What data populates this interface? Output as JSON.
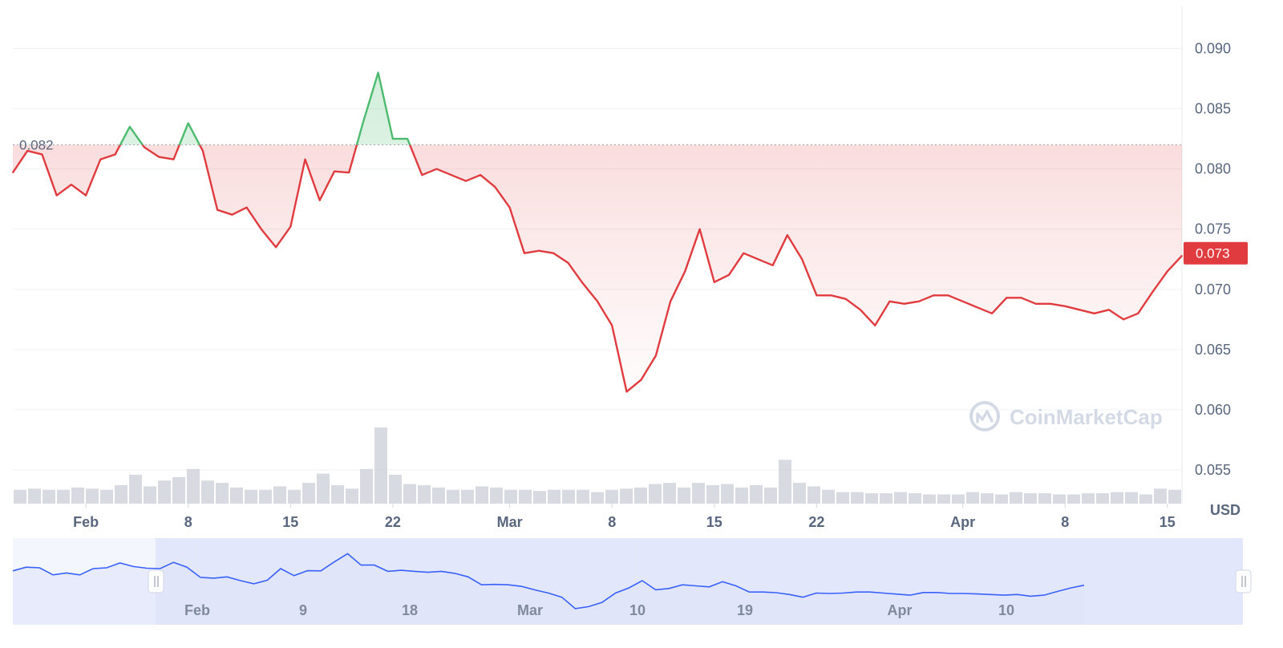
{
  "colors": {
    "down": "#e03b3f",
    "up": "#4cbb6e",
    "volume": "#c9ced6",
    "navigator_line": "#3861fb",
    "navigator_fill": "#dfe4fa",
    "axis_text": "#58667e"
  },
  "watermark": {
    "text": "CoinMarketCap",
    "icon": "coinmarketcap-logo-icon"
  },
  "chart_data": {
    "type": "line",
    "title": "",
    "unit": "USD",
    "reference_value": 0.082,
    "reference_label": "0.082",
    "current_value": 0.073,
    "current_label": "0.073",
    "y_ticks": [
      "0.090",
      "0.085",
      "0.080",
      "0.075",
      "0.070",
      "0.065",
      "0.060",
      "0.055"
    ],
    "ylim": [
      0.0522,
      0.0935
    ],
    "x_ticks": [
      {
        "label": "Feb",
        "date": "2024-02-01"
      },
      {
        "label": "8",
        "date": "2024-02-08"
      },
      {
        "label": "15",
        "date": "2024-02-15"
      },
      {
        "label": "22",
        "date": "2024-02-22"
      },
      {
        "label": "Mar",
        "date": "2024-03-01"
      },
      {
        "label": "8",
        "date": "2024-03-08"
      },
      {
        "label": "15",
        "date": "2024-03-15"
      },
      {
        "label": "22",
        "date": "2024-03-22"
      },
      {
        "label": "Apr",
        "date": "2024-04-01"
      },
      {
        "label": "8",
        "date": "2024-04-08"
      },
      {
        "label": "15",
        "date": "2024-04-15"
      }
    ],
    "xlim": [
      "2024-01-27",
      "2024-04-16"
    ],
    "grid": true,
    "series": [
      {
        "x": [
          "2024-01-27",
          "2024-01-28",
          "2024-01-29",
          "2024-01-30",
          "2024-01-31",
          "2024-02-01",
          "2024-02-02",
          "2024-02-03",
          "2024-02-04",
          "2024-02-05",
          "2024-02-06",
          "2024-02-07",
          "2024-02-08",
          "2024-02-09",
          "2024-02-10",
          "2024-02-11",
          "2024-02-12",
          "2024-02-13",
          "2024-02-14",
          "2024-02-15",
          "2024-02-16",
          "2024-02-17",
          "2024-02-18",
          "2024-02-19",
          "2024-02-20",
          "2024-02-21",
          "2024-02-22",
          "2024-02-23",
          "2024-02-24",
          "2024-02-25",
          "2024-02-26",
          "2024-02-27",
          "2024-02-28",
          "2024-02-29",
          "2024-03-01",
          "2024-03-02",
          "2024-03-03",
          "2024-03-04",
          "2024-03-05",
          "2024-03-06",
          "2024-03-07",
          "2024-03-08",
          "2024-03-09",
          "2024-03-10",
          "2024-03-11",
          "2024-03-12",
          "2024-03-13",
          "2024-03-14",
          "2024-03-15",
          "2024-03-16",
          "2024-03-17",
          "2024-03-18",
          "2024-03-19",
          "2024-03-20",
          "2024-03-21",
          "2024-03-22",
          "2024-03-23",
          "2024-03-24",
          "2024-03-25",
          "2024-03-26",
          "2024-03-27",
          "2024-03-28",
          "2024-03-29",
          "2024-03-30",
          "2024-03-31",
          "2024-04-01",
          "2024-04-02",
          "2024-04-03",
          "2024-04-04",
          "2024-04-05",
          "2024-04-06",
          "2024-04-07",
          "2024-04-08",
          "2024-04-09",
          "2024-04-10",
          "2024-04-11",
          "2024-04-12",
          "2024-04-13",
          "2024-04-14",
          "2024-04-15",
          "2024-04-16"
        ],
        "values": [
          0.0797,
          0.0815,
          0.0812,
          0.0778,
          0.0787,
          0.0778,
          0.0808,
          0.0812,
          0.0835,
          0.0818,
          0.081,
          0.0808,
          0.0838,
          0.0815,
          0.0766,
          0.0762,
          0.0768,
          0.075,
          0.0735,
          0.0752,
          0.0808,
          0.0774,
          0.0798,
          0.0797,
          0.084,
          0.088,
          0.0825,
          0.0825,
          0.0795,
          0.08,
          0.0795,
          0.079,
          0.0795,
          0.0785,
          0.0768,
          0.073,
          0.0732,
          0.073,
          0.0722,
          0.0705,
          0.069,
          0.067,
          0.0615,
          0.0625,
          0.0645,
          0.069,
          0.0715,
          0.075,
          0.0706,
          0.0712,
          0.073,
          0.0725,
          0.072,
          0.0745,
          0.0725,
          0.0695,
          0.0695,
          0.0692,
          0.0683,
          0.067,
          0.069,
          0.0688,
          0.069,
          0.0695,
          0.0695,
          0.069,
          0.0685,
          0.068,
          0.0693,
          0.0693,
          0.0688,
          0.0688,
          0.0686,
          0.0683,
          0.068,
          0.0683,
          0.0675,
          0.068,
          0.0698,
          0.0715,
          0.0728
        ]
      }
    ],
    "volume": [
      12,
      13,
      12,
      12,
      14,
      13,
      12,
      16,
      25,
      15,
      20,
      23,
      30,
      20,
      18,
      14,
      12,
      12,
      15,
      12,
      18,
      26,
      16,
      13,
      30,
      66,
      25,
      17,
      16,
      14,
      12,
      12,
      15,
      14,
      12,
      12,
      11,
      12,
      12,
      12,
      10,
      12,
      13,
      14,
      17,
      18,
      14,
      18,
      16,
      17,
      14,
      16,
      14,
      38,
      18,
      15,
      12,
      10,
      10,
      9,
      9,
      10,
      9,
      8,
      8,
      8,
      10,
      9,
      8,
      10,
      9,
      9,
      8,
      8,
      9,
      9,
      10,
      10,
      8,
      13,
      12
    ],
    "navigator": {
      "x_ticks": [
        "Feb",
        "9",
        "18",
        "Mar",
        "10",
        "19",
        "Apr",
        "10"
      ]
    }
  }
}
